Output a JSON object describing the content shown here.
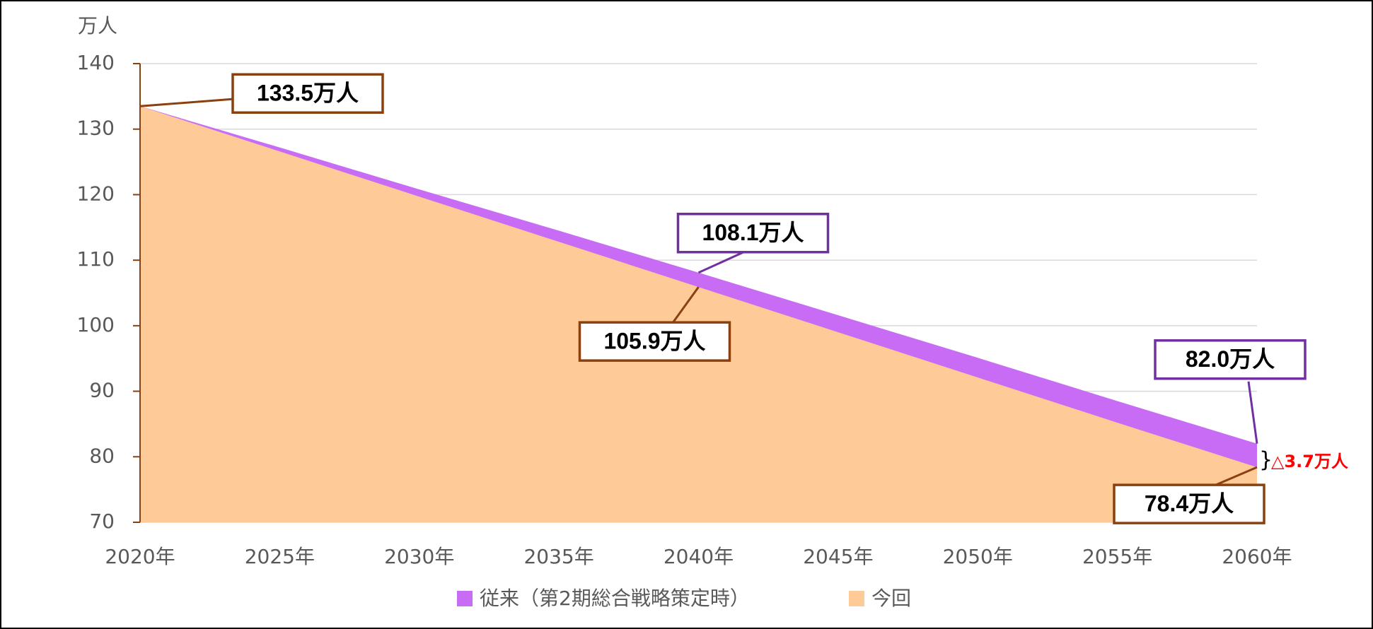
{
  "chart_data": {
    "type": "area",
    "y_axis_label": "万人",
    "categories": [
      "2020年",
      "2025年",
      "2030年",
      "2035年",
      "2040年",
      "2045年",
      "2050年",
      "2055年",
      "2060年"
    ],
    "series": [
      {
        "name": "従来（第2期総合戦略策定時）",
        "color": "#c96cf5",
        "border_color": "#7030a0",
        "values": [
          133.5,
          127.2,
          120.8,
          114.5,
          108.1,
          101.6,
          95.1,
          88.5,
          82.0
        ],
        "value_labels": [
          null,
          null,
          null,
          null,
          "108.1万人",
          null,
          null,
          null,
          "82.0万人"
        ]
      },
      {
        "name": "今回",
        "color": "#fdca98",
        "border_color": "#8b4010",
        "values": [
          133.5,
          126.6,
          119.7,
          112.8,
          105.9,
          99.0,
          92.1,
          85.2,
          78.4
        ],
        "value_labels": [
          "133.5万人",
          null,
          null,
          null,
          "105.9万人",
          null,
          null,
          null,
          "78.4万人"
        ]
      }
    ],
    "annotation": "△3.7万人",
    "ylim": [
      70,
      140
    ],
    "yticks": [
      70,
      80,
      90,
      100,
      110,
      120,
      130,
      140
    ],
    "grid": true
  }
}
